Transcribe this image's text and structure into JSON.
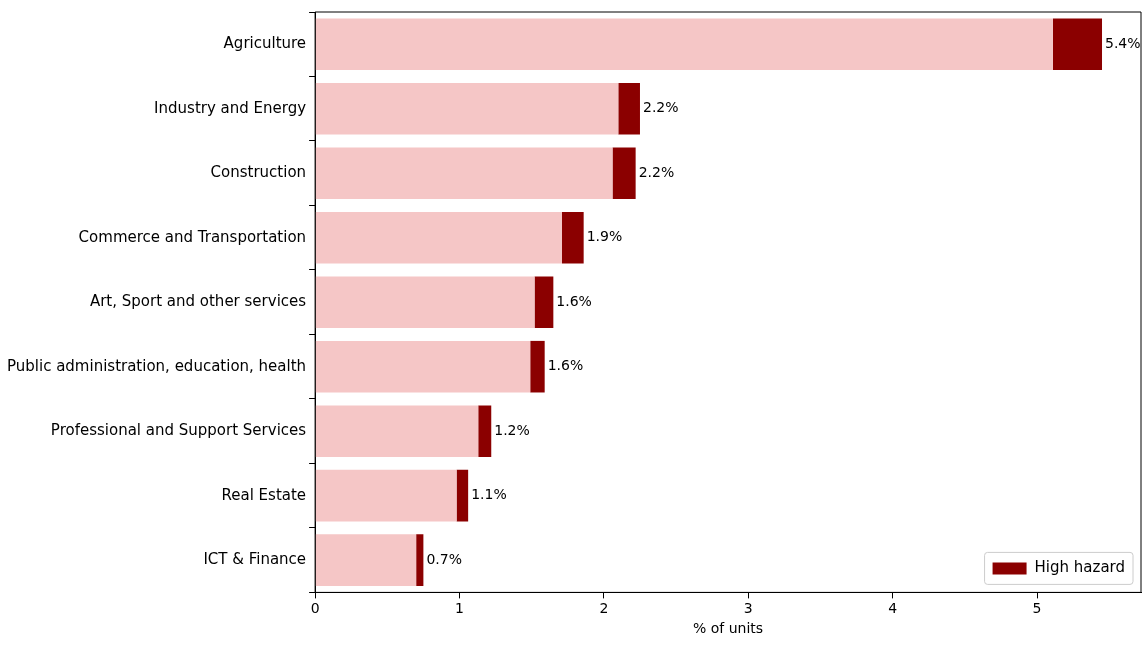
{
  "chart_data": {
    "type": "bar",
    "orientation": "horizontal",
    "stacked": true,
    "xlabel": "% of units",
    "categories": [
      "Agriculture",
      "Industry and Energy",
      "Construction",
      "Commerce and Transportation",
      "Art, Sport and other services",
      "Public administration, education, health",
      "Professional and Support Services",
      "Real Estate",
      "ICT & Finance"
    ],
    "series": [
      {
        "color": "#f5c6c6",
        "values": [
          5.11,
          2.1,
          2.06,
          1.71,
          1.52,
          1.49,
          1.13,
          0.98,
          0.7
        ]
      },
      {
        "name": "High hazard",
        "color": "#8b0000",
        "values": [
          0.34,
          0.15,
          0.16,
          0.15,
          0.13,
          0.1,
          0.09,
          0.08,
          0.05
        ]
      }
    ],
    "totals": [
      "5.4%",
      "2.2%",
      "2.2%",
      "1.9%",
      "1.6%",
      "1.6%",
      "1.2%",
      "1.1%",
      "0.7%"
    ],
    "xlim": [
      0,
      5.72
    ],
    "xticks": [
      0,
      1,
      2,
      3,
      4,
      5
    ],
    "grid": false,
    "legend": "bottom right"
  }
}
